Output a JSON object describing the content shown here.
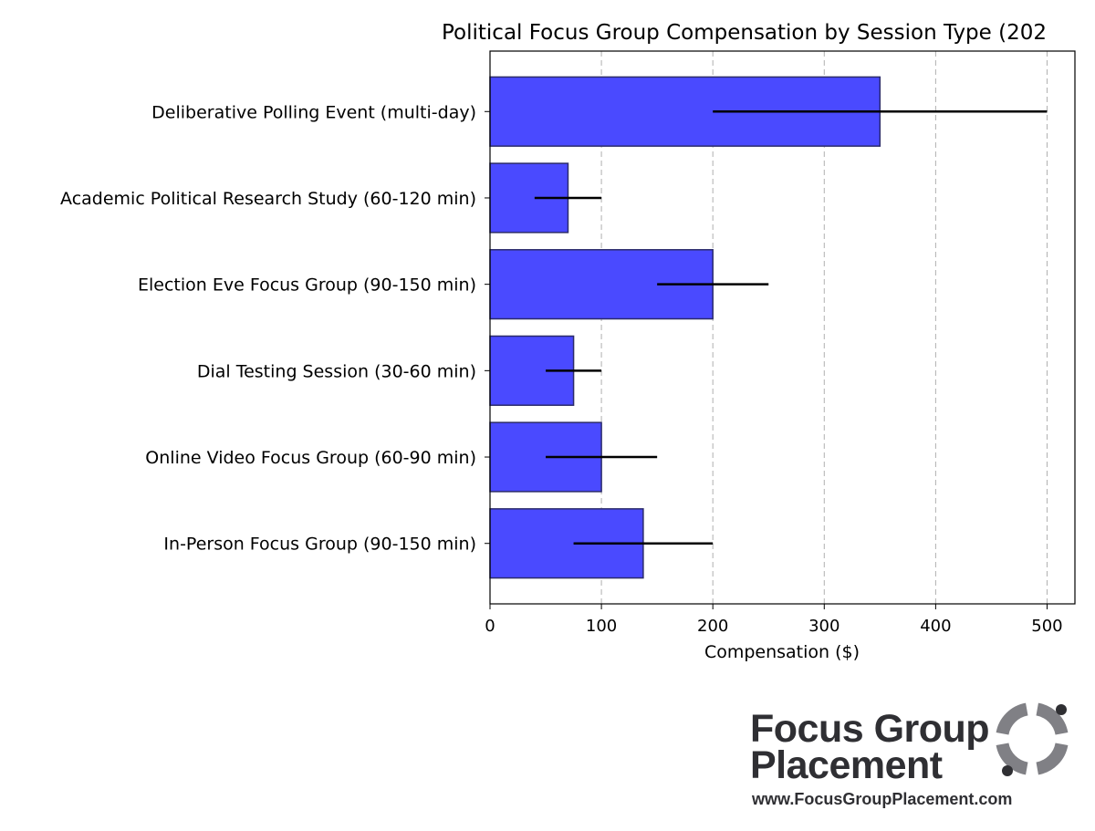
{
  "chart_data": {
    "type": "bar",
    "orientation": "horizontal",
    "title": "Political Focus Group Compensation by Session Type (202",
    "xlabel": "Compensation ($)",
    "ylabel": "",
    "xlim": [
      0,
      525
    ],
    "xticks": [
      "0",
      "100",
      "200",
      "300",
      "400",
      "500"
    ],
    "grid": "x-dashed",
    "bar_color": "#4a4aff",
    "edge_color": "#2b2b6b",
    "categories": [
      "Deliberative Polling Event (multi-day)",
      "Academic Political Research Study (60-120 min)",
      "Election Eve Focus Group (90-150 min)",
      "Dial Testing Session (30-60 min)",
      "Online Video Focus Group (60-90 min)",
      "In-Person Focus Group (90-150 min)"
    ],
    "values": [
      350,
      70,
      200,
      75,
      100,
      137.5
    ],
    "ranges": [
      [
        200,
        500
      ],
      [
        40,
        100
      ],
      [
        150,
        250
      ],
      [
        50,
        100
      ],
      [
        50,
        150
      ],
      [
        75,
        200
      ]
    ]
  },
  "logo": {
    "line1": "Focus Group",
    "line2": "Placement",
    "url": "www.FocusGroupPlacement.com",
    "mark_color": "#808085",
    "dot_color": "#2f2f33"
  }
}
